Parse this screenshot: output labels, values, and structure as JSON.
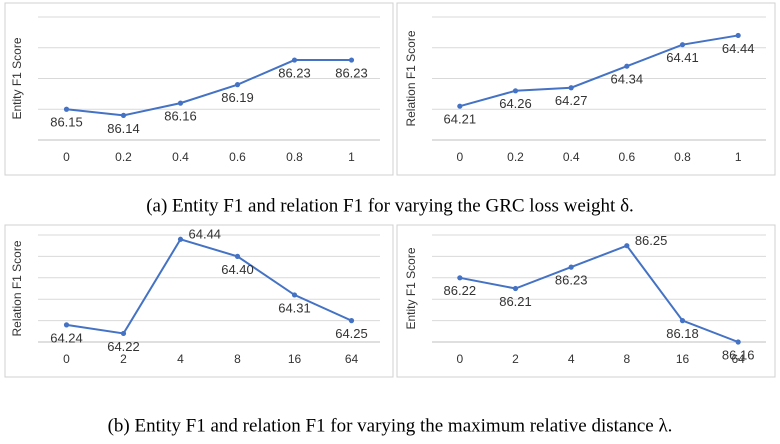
{
  "chart_data": [
    {
      "type": "line",
      "y_label": "Entity F1 Score",
      "categories": [
        "0",
        "0.2",
        "0.4",
        "0.6",
        "0.8",
        "1"
      ],
      "values": [
        86.15,
        86.14,
        86.16,
        86.19,
        86.23,
        86.23
      ],
      "color": "#4472c4",
      "ylim": [
        86.1,
        86.3
      ],
      "yticks": [
        86.1,
        86.15,
        86.2,
        86.25,
        86.3
      ],
      "grid": true
    },
    {
      "type": "line",
      "y_label": "Relation F1 Score",
      "categories": [
        "0",
        "0.2",
        "0.4",
        "0.6",
        "0.8",
        "1"
      ],
      "values": [
        64.21,
        64.26,
        64.27,
        64.34,
        64.41,
        64.44
      ],
      "color": "#4472c4",
      "ylim": [
        64.1,
        64.5
      ],
      "yticks": [
        64.1,
        64.2,
        64.3,
        64.4,
        64.5
      ],
      "grid": true
    },
    {
      "type": "line",
      "y_label": "Relation F1 Score",
      "categories": [
        "0",
        "2",
        "4",
        "8",
        "16",
        "64"
      ],
      "values": [
        64.24,
        64.22,
        64.44,
        64.4,
        64.31,
        64.25
      ],
      "value_labels": [
        "64.24",
        "64.22",
        "64.44",
        "64.40",
        "64.31",
        "64.25"
      ],
      "color": "#4472c4",
      "ylim": [
        64.2,
        64.45
      ],
      "yticks": [
        64.2,
        64.25,
        64.3,
        64.35,
        64.4,
        64.45
      ],
      "grid": true
    },
    {
      "type": "line",
      "y_label": "Entity F1 Score",
      "categories": [
        "0",
        "2",
        "4",
        "8",
        "16",
        "64"
      ],
      "values": [
        86.22,
        86.21,
        86.23,
        86.25,
        86.18,
        86.16
      ],
      "color": "#4472c4",
      "ylim": [
        86.16,
        86.26
      ],
      "yticks": [
        86.16,
        86.18,
        86.2,
        86.22,
        86.24,
        86.26
      ],
      "grid": true
    }
  ],
  "captions": [
    "(a) Entity F1 and relation F1 for varying the GRC loss weight δ.",
    "(b) Entity F1 and relation F1 for varying the maximum relative distance λ."
  ]
}
